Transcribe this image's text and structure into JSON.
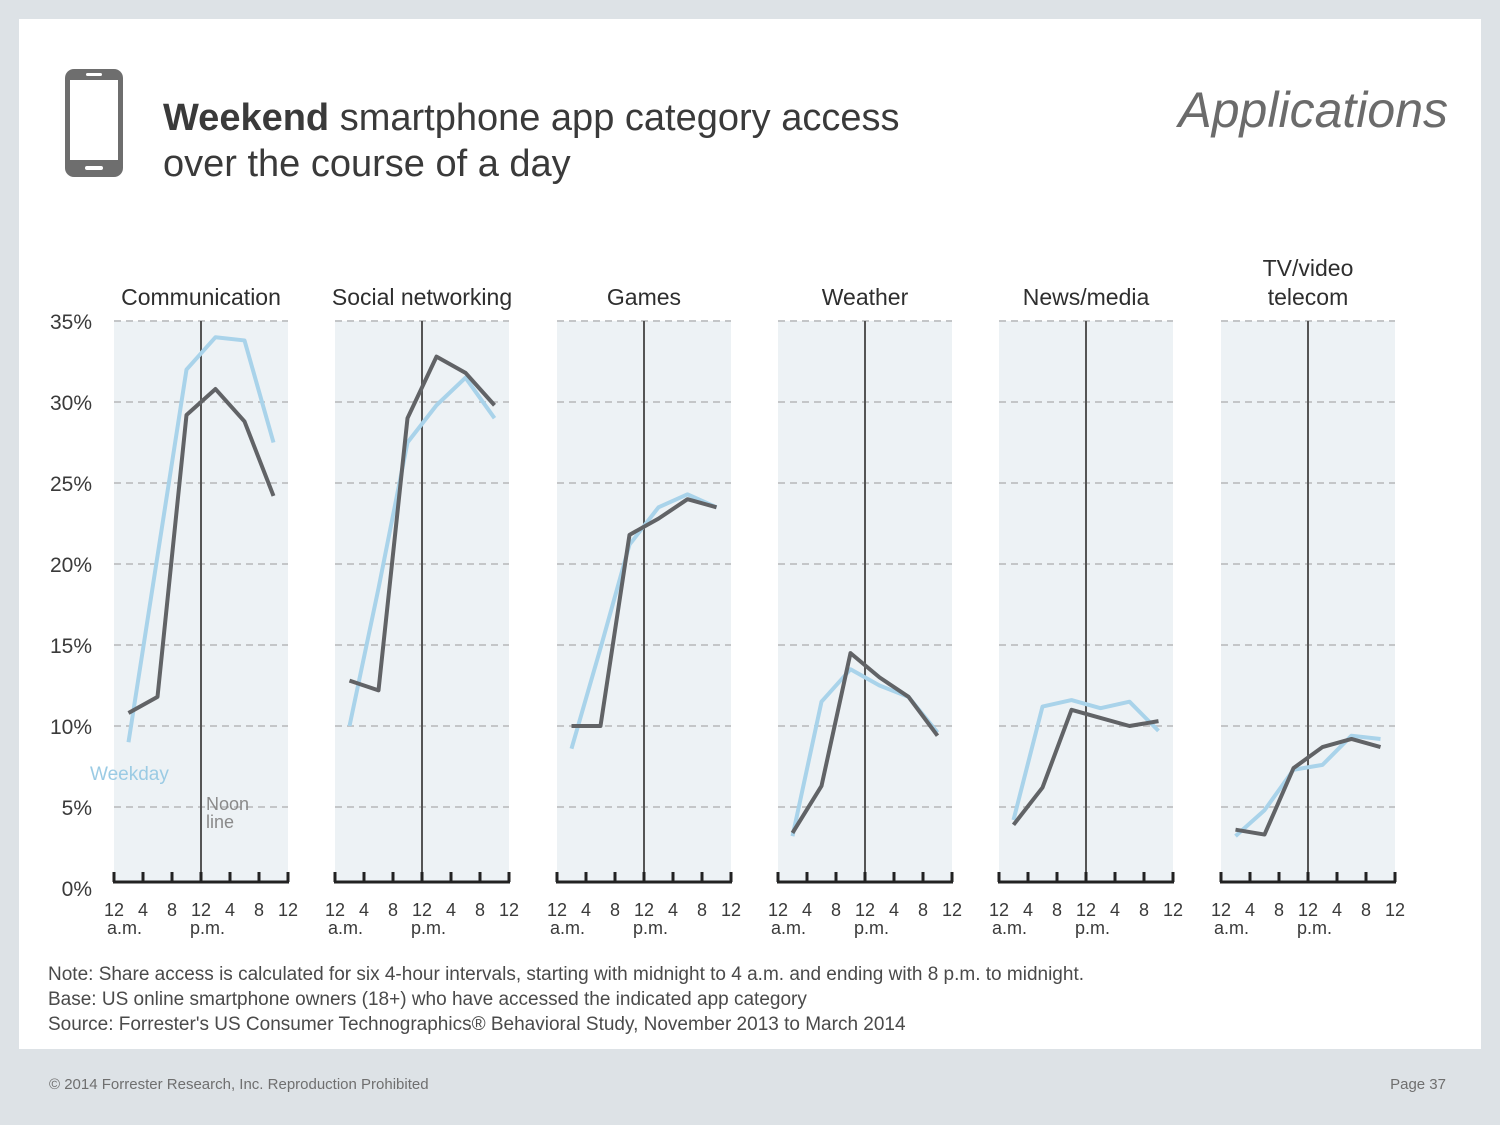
{
  "header": {
    "title_bold": "Weekend",
    "title_rest_line1": " smartphone app category access",
    "title_line2": "over the course of a day",
    "section": "Applications",
    "icon": "smartphone-icon"
  },
  "colors": {
    "weekday": "#a9d3ea",
    "weekend": "#616366",
    "panel_bg": "#edf2f5",
    "grid": "#c4c6c8",
    "noon_line": "#555555"
  },
  "chart_data": {
    "type": "line",
    "ylim": [
      0,
      35
    ],
    "y_ticks": [
      "0%",
      "5%",
      "10%",
      "15%",
      "20%",
      "25%",
      "30%",
      "35%"
    ],
    "x_ticks": [
      "12",
      "4",
      "8",
      "12",
      "4",
      "8",
      "12"
    ],
    "x_sublabels": [
      "a.m.",
      "p.m."
    ],
    "interval_labels": [
      "12-4 a.m.",
      "4-8 a.m.",
      "8 a.m.-12 p.m.",
      "12-4 p.m.",
      "4-8 p.m.",
      "8 p.m.-12 a.m."
    ],
    "annotations": {
      "weekday_label": "Weekday",
      "noon_label_line1": "Noon",
      "noon_label_line2": "line"
    },
    "panels": [
      {
        "title": [
          "Communication"
        ],
        "weekday": [
          9,
          20.5,
          32,
          34,
          33.8,
          27.5
        ],
        "weekend": [
          10.8,
          11.8,
          29.2,
          30.8,
          28.8,
          24.2
        ]
      },
      {
        "title": [
          "Social networking"
        ],
        "weekday": [
          10,
          18.5,
          27.5,
          29.8,
          31.5,
          29
        ],
        "weekend": [
          12.8,
          12.2,
          29,
          32.8,
          31.8,
          29.8
        ]
      },
      {
        "title": [
          "Games"
        ],
        "weekday": [
          8.6,
          14.8,
          21.2,
          23.5,
          24.3,
          23.5
        ],
        "weekend": [
          10,
          10,
          21.8,
          22.8,
          24,
          23.5
        ]
      },
      {
        "title": [
          "Weather"
        ],
        "weekday": [
          3.2,
          11.5,
          13.5,
          12.5,
          11.8,
          9.6
        ],
        "weekend": [
          3.4,
          6.3,
          14.5,
          13,
          11.8,
          9.4
        ]
      },
      {
        "title": [
          "News/media"
        ],
        "weekday": [
          4.2,
          11.2,
          11.6,
          11.1,
          11.5,
          9.7
        ],
        "weekend": [
          3.9,
          6.2,
          11,
          10.5,
          10,
          10.3
        ]
      },
      {
        "title": [
          "TV/video",
          "telecom"
        ],
        "weekday": [
          3.2,
          4.8,
          7.3,
          7.6,
          9.4,
          9.2
        ],
        "weekend": [
          3.6,
          3.3,
          7.4,
          8.7,
          9.2,
          8.7
        ]
      }
    ]
  },
  "notes": [
    "Note: Share access is calculated for six 4-hour intervals, starting with midnight to 4 a.m. and ending with 8 p.m. to midnight.",
    "Base: US online smartphone owners (18+) who have accessed the indicated app category",
    "Source: Forrester's US Consumer Technographics® Behavioral Study, November 2013 to March 2014"
  ],
  "footer": {
    "copyright": "© 2014 Forrester Research, Inc. Reproduction Prohibited",
    "page": "Page 37"
  }
}
